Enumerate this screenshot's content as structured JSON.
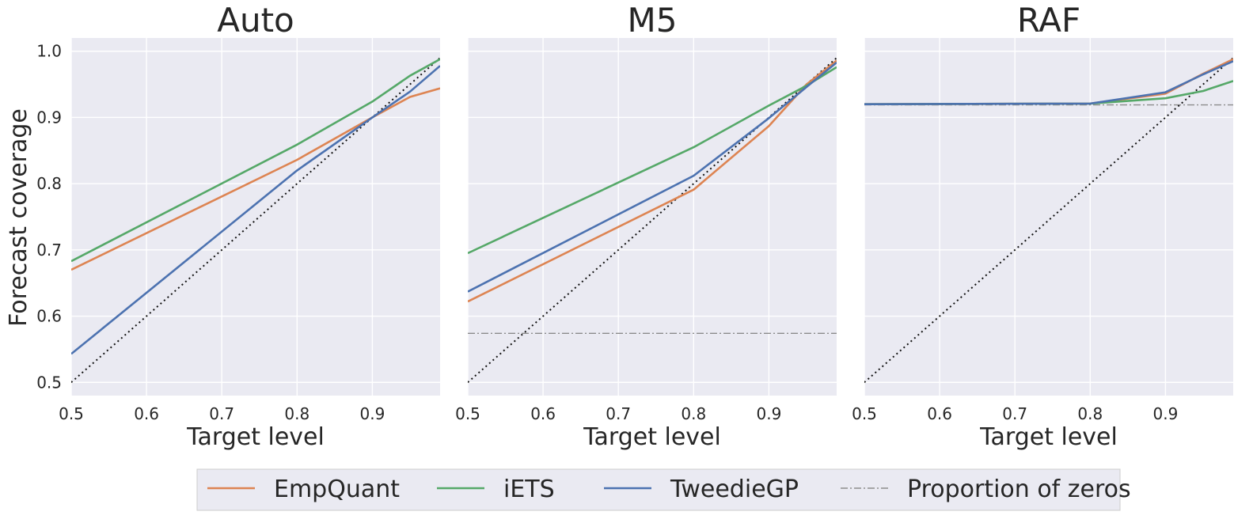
{
  "chart_data": {
    "type": "line",
    "ylabel": "Forecast coverage",
    "xlabel": "Target level",
    "xlim": [
      0.5,
      0.99
    ],
    "ylim": [
      0.48,
      1.02
    ],
    "xticks": [
      0.5,
      0.6,
      0.7,
      0.8,
      0.9
    ],
    "xtick_labels": [
      "0.5",
      "0.6",
      "0.7",
      "0.8",
      "0.9"
    ],
    "yticks": [
      0.5,
      0.6,
      0.7,
      0.8,
      0.9,
      1.0
    ],
    "ytick_labels": [
      "0.5",
      "0.6",
      "0.7",
      "0.8",
      "0.9",
      "1.0"
    ],
    "grid": true,
    "legend_position": "bottom",
    "colors": {
      "EmpQuant": "#dd8452",
      "iETS": "#55a868",
      "TweedieGP": "#4c72b0",
      "reference": "#111111",
      "zeros": "#8c8c8c"
    },
    "legend": [
      {
        "key": "EmpQuant",
        "label": "EmpQuant",
        "style": "solid"
      },
      {
        "key": "iETS",
        "label": "iETS",
        "style": "solid"
      },
      {
        "key": "TweedieGP",
        "label": "TweedieGP",
        "style": "solid"
      },
      {
        "key": "zeros",
        "label": "Proportion of zeros",
        "style": "dashdot"
      }
    ],
    "panels": [
      {
        "title": "Auto",
        "x": [
          0.5,
          0.8,
          0.9,
          0.95,
          0.99
        ],
        "reference": [
          [
            0.5,
            0.5
          ],
          [
            0.99,
            0.99
          ]
        ],
        "zeros": null,
        "series": [
          {
            "name": "EmpQuant",
            "values": [
              0.67,
              0.836,
              0.9,
              0.931,
              0.944
            ]
          },
          {
            "name": "iETS",
            "values": [
              0.683,
              0.859,
              0.924,
              0.963,
              0.988
            ]
          },
          {
            "name": "TweedieGP",
            "values": [
              0.543,
              0.82,
              0.9,
              0.939,
              0.978
            ]
          }
        ]
      },
      {
        "title": "M5",
        "x": [
          0.5,
          0.8,
          0.9,
          0.95,
          0.99
        ],
        "reference": [
          [
            0.5,
            0.5
          ],
          [
            0.99,
            0.99
          ]
        ],
        "zeros": 0.574,
        "series": [
          {
            "name": "EmpQuant",
            "values": [
              0.622,
              0.791,
              0.887,
              0.95,
              0.986
            ]
          },
          {
            "name": "iETS",
            "values": [
              0.695,
              0.855,
              0.918,
              0.948,
              0.976
            ]
          },
          {
            "name": "TweedieGP",
            "values": [
              0.637,
              0.812,
              0.899,
              0.946,
              0.983
            ]
          }
        ]
      },
      {
        "title": "RAF",
        "x": [
          0.5,
          0.8,
          0.9,
          0.95,
          0.99
        ],
        "reference": [
          [
            0.5,
            0.5
          ],
          [
            0.99,
            0.99
          ]
        ],
        "zeros": 0.919,
        "series": [
          {
            "name": "EmpQuant",
            "values": [
              0.92,
              0.921,
              0.936,
              0.966,
              0.988
            ]
          },
          {
            "name": "iETS",
            "values": [
              0.92,
              0.921,
              0.929,
              0.94,
              0.955
            ]
          },
          {
            "name": "TweedieGP",
            "values": [
              0.92,
              0.921,
              0.938,
              0.965,
              0.985
            ]
          }
        ]
      }
    ]
  }
}
